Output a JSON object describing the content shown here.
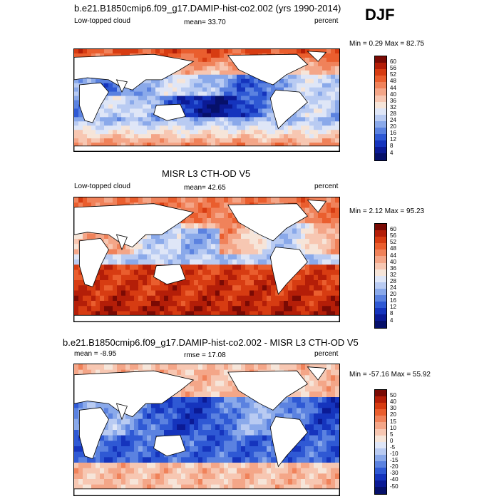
{
  "season": "DJF",
  "chart_data": [
    {
      "type": "heatmap",
      "title": "b.e21.B1850cmip6.f09_g17.DAMIP-hist-co2.002 (yrs 1990-2014)",
      "left_label": "Low-topped cloud",
      "center_label": "mean=  33.70",
      "right_label": "percent",
      "stats": "Min =   0.29 Max =  82.75",
      "min": 0.29,
      "max": 82.75,
      "mean": 33.7,
      "units": "percent",
      "colorbar_ticks": [
        "60",
        "56",
        "52",
        "48",
        "44",
        "40",
        "36",
        "32",
        "28",
        "24",
        "20",
        "16",
        "12",
        "8",
        "4"
      ]
    },
    {
      "type": "heatmap",
      "title": "MISR L3 CTH-OD V5",
      "left_label": "Low-topped cloud",
      "center_label": "mean=  42.65",
      "right_label": "percent",
      "stats": "Min =   2.12 Max =  95.23",
      "min": 2.12,
      "max": 95.23,
      "mean": 42.65,
      "units": "percent",
      "colorbar_ticks": [
        "60",
        "56",
        "52",
        "48",
        "44",
        "40",
        "36",
        "32",
        "28",
        "24",
        "20",
        "16",
        "12",
        "8",
        "4"
      ]
    },
    {
      "type": "heatmap",
      "title": "b.e21.B1850cmip6.f09_g17.DAMIP-hist-co2.002 - MISR L3 CTH-OD V5",
      "left_label": "mean =  -8.95",
      "center_label": "rmse =  17.08",
      "right_label": "percent",
      "stats": "Min = -57.16 Max =  55.92",
      "min": -57.16,
      "max": 55.92,
      "mean": -8.95,
      "rmse": 17.08,
      "units": "percent",
      "colorbar_ticks": [
        "50",
        "40",
        "30",
        "20",
        "15",
        "10",
        "5",
        "0",
        "-5",
        "-10",
        "-15",
        "-20",
        "-30",
        "-40",
        "-50"
      ]
    }
  ],
  "colors": {
    "seq": [
      "#7a0a04",
      "#b41e08",
      "#d73c12",
      "#ea5e2e",
      "#f0825a",
      "#f4a688",
      "#f7c7b2",
      "#f6e5d9",
      "#dfe6f7",
      "#b9cbf2",
      "#8aa9ea",
      "#5b82e0",
      "#2f59d4",
      "#1534bd",
      "#0b1a95",
      "#06106a"
    ],
    "diff": [
      "#7a0a04",
      "#b41e08",
      "#d73c12",
      "#ea5e2e",
      "#f0825a",
      "#f4a688",
      "#f7c7b2",
      "#f6e5d9",
      "#dfe6f7",
      "#b9cbf2",
      "#8aa9ea",
      "#5b82e0",
      "#2f59d4",
      "#1534bd",
      "#0b1a95",
      "#06106a"
    ]
  }
}
